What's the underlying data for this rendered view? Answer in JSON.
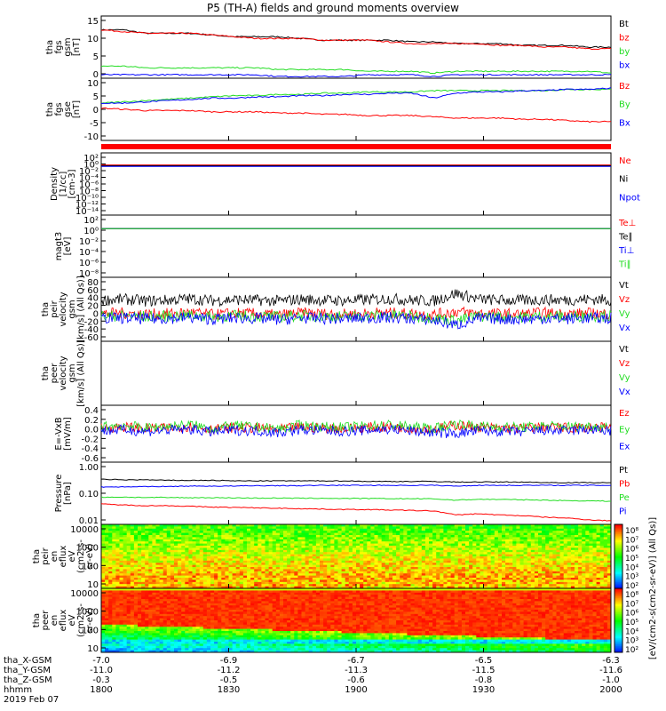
{
  "title": "P5 (TH-A) fields and ground moments overview",
  "colors": {
    "black": "#000000",
    "red": "#ff0000",
    "green": "#22dd22",
    "blue": "#0000ff"
  },
  "colorbar": {
    "top": {
      "ticks": [
        "10⁸",
        "10⁷",
        "10⁶",
        "10⁵",
        "10⁴",
        "10³",
        "10²"
      ]
    },
    "bottom": {
      "ticks": [
        "10⁸",
        "10⁷",
        "10⁶",
        "10⁵",
        "10⁴",
        "10³",
        "10²"
      ]
    },
    "unit_label": "[eV/(cm2-s(cm2-sr-eV)] (All Qs)]"
  },
  "footer": {
    "rows": [
      {
        "label": "tha_X-GSM",
        "values": [
          "-7.0",
          "-6.9",
          "-6.7",
          "-6.5",
          "-6.3"
        ]
      },
      {
        "label": "tha_Y-GSM",
        "values": [
          "-11.0",
          "-11.2",
          "-11.3",
          "-11.5",
          "-11.6"
        ]
      },
      {
        "label": "tha_Z-GSM",
        "values": [
          "-0.3",
          "-0.5",
          "-0.6",
          "-0.8",
          "-1.0"
        ]
      },
      {
        "label": "hhmm",
        "values": [
          "1800",
          "1830",
          "1900",
          "1930",
          "2000"
        ]
      }
    ],
    "date": "2019 Feb 07"
  },
  "chart_data": [
    {
      "type": "line",
      "ylabel": [
        "tha",
        "fgs",
        "gsm",
        "[nT]"
      ],
      "ylim": [
        -3,
        15
      ],
      "yticks": [
        "15",
        "10",
        "5",
        "0"
      ],
      "series": [
        {
          "name": "Bt",
          "color": "black",
          "values": [
            11,
            11,
            10,
            10,
            10,
            9.5,
            9,
            9,
            9,
            8.5,
            8,
            8,
            8,
            8,
            7.5,
            7.5,
            7,
            7,
            7,
            6.5,
            6.5,
            6.5,
            6,
            6
          ]
        },
        {
          "name": "bz",
          "color": "red",
          "values": [
            11,
            10.5,
            10,
            10,
            10,
            9.5,
            9,
            8.5,
            8.5,
            8.5,
            8,
            8,
            8,
            7.5,
            7,
            7,
            7,
            7,
            6.5,
            6.5,
            6,
            6,
            5.5,
            5.5
          ]
        },
        {
          "name": "by",
          "color": "green",
          "values": [
            0.5,
            0.5,
            0,
            0,
            0,
            0,
            0,
            0,
            -0.5,
            -0.5,
            -0.5,
            -0.5,
            -1,
            -1,
            -1,
            -1.5,
            -1,
            -1,
            -1,
            -1,
            -1,
            -1,
            -1,
            -1.5
          ]
        },
        {
          "name": "bx",
          "color": "blue",
          "values": [
            -2,
            -2,
            -2,
            -2,
            -2,
            -2,
            -2,
            -2,
            -2.5,
            -2.5,
            -2.5,
            -2.5,
            -2,
            -2,
            -2,
            -2.5,
            -2,
            -2,
            -2,
            -2,
            -2,
            -2,
            -2,
            -2
          ]
        }
      ]
    },
    {
      "type": "line",
      "ylabel": [
        "tha",
        "fgs",
        "gse",
        "[nT]"
      ],
      "ylim": [
        -15,
        10
      ],
      "yticks": [
        "10",
        "5",
        "0",
        "-5",
        "-10"
      ],
      "series": [
        {
          "name": "Bz",
          "color": "red",
          "values": [
            -2,
            -2.5,
            -3,
            -3,
            -3,
            -3.5,
            -3.5,
            -3.5,
            -4,
            -4,
            -4.5,
            -4.5,
            -5,
            -5,
            -5,
            -5.5,
            -6,
            -6,
            -6,
            -6.5,
            -6.5,
            -7,
            -7.5,
            -7.5
          ]
        },
        {
          "name": "By",
          "color": "green",
          "values": [
            0,
            0.5,
            1,
            1.5,
            2,
            2.5,
            3,
            3,
            3.5,
            3.5,
            4,
            4,
            4.5,
            4.5,
            4.5,
            5,
            5,
            5,
            5,
            5,
            5,
            5.5,
            5.5,
            5.5
          ]
        },
        {
          "name": "Bx",
          "color": "blue",
          "values": [
            0,
            0,
            0.5,
            1,
            1.5,
            2,
            2,
            2.5,
            2.5,
            3,
            3,
            3.5,
            3.5,
            4,
            4,
            2,
            4,
            4.5,
            4.5,
            5,
            5,
            5.5,
            5.5,
            6
          ]
        }
      ]
    },
    {
      "type": "line",
      "ylabel": [
        "Density",
        "[1/cc]",
        "[cm-3]"
      ],
      "ylog": true,
      "ylim": [
        -14,
        3
      ],
      "yticks": [
        "10²",
        "10⁰",
        "10⁻²",
        "10⁻⁴",
        "10⁻⁶",
        "10⁻⁸",
        "10⁻¹⁰",
        "10⁻¹²",
        "10⁻¹⁴"
      ],
      "series": [
        {
          "name": "Ne",
          "color": "red",
          "values": [
            0.5,
            0.5,
            0.5,
            0.5
          ]
        },
        {
          "name": "Ni",
          "color": "black",
          "values": [
            0.3,
            0.3,
            0.3,
            0.3
          ]
        },
        {
          "name": "Npot",
          "color": "blue",
          "values": [
            0.2,
            0.2,
            0.2,
            0.2
          ]
        }
      ]
    },
    {
      "type": "line",
      "ylabel": [
        "magt3",
        "[eV]"
      ],
      "ylog": true,
      "ylim": [
        -9,
        3
      ],
      "yticks": [
        "10²",
        "10⁰",
        "10⁻²",
        "10⁻⁴",
        "10⁻⁶",
        "10⁻⁸"
      ],
      "series": [
        {
          "name": "Te⊥",
          "color": "red",
          "values": [
            2.5,
            2.5,
            2.5,
            2.5
          ]
        },
        {
          "name": "Te∥",
          "color": "black",
          "values": [
            2.5,
            2.5,
            2.5,
            2.5
          ]
        },
        {
          "name": "Ti⊥",
          "color": "blue",
          "values": [
            2.4,
            2.4,
            2.4,
            2.4
          ]
        },
        {
          "name": "Ti∥",
          "color": "green",
          "values": [
            2.4,
            2.4,
            2.4,
            2.4
          ]
        }
      ]
    },
    {
      "type": "line",
      "ylabel": [
        "tha",
        "peir",
        "velocity",
        "gsm",
        "[km/s] (All Qs)]"
      ],
      "ylim": [
        -60,
        80
      ],
      "yticks": [
        "80",
        "60",
        "40",
        "20",
        "0",
        "-20",
        "-40",
        "-60"
      ],
      "noise": true,
      "series": [
        {
          "name": "Vt",
          "color": "black",
          "values": [
            30,
            32,
            28,
            30,
            33,
            29,
            31,
            30,
            28,
            32,
            30,
            29,
            31,
            33,
            30,
            28,
            45,
            32,
            30,
            29,
            31,
            30,
            32,
            30
          ]
        },
        {
          "name": "Vz",
          "color": "red",
          "values": [
            0,
            2,
            -1,
            0,
            3,
            -2,
            1,
            0,
            -3,
            2,
            0,
            -1,
            1,
            2,
            0,
            -2,
            5,
            1,
            0,
            -1,
            2,
            0,
            1,
            0
          ]
        },
        {
          "name": "Vy",
          "color": "green",
          "values": [
            -5,
            -4,
            -6,
            -5,
            -3,
            -6,
            -4,
            -5,
            -7,
            -4,
            -5,
            -6,
            -4,
            -3,
            -5,
            -8,
            -15,
            -5,
            -6,
            -7,
            -5,
            -6,
            -4,
            -5
          ]
        },
        {
          "name": "Vx",
          "color": "blue",
          "values": [
            -10,
            -9,
            -11,
            -10,
            -8,
            -12,
            -9,
            -10,
            -13,
            -9,
            -10,
            -11,
            -9,
            -8,
            -10,
            -14,
            -25,
            -10,
            -11,
            -12,
            -10,
            -11,
            -9,
            -10
          ]
        }
      ]
    },
    {
      "type": "line",
      "ylabel": [
        "tha",
        "peer",
        "velocity",
        "gsm",
        "[km/s] (All Qs)]"
      ],
      "empty": true,
      "series": [
        {
          "name": "Vt",
          "color": "black",
          "values": []
        },
        {
          "name": "Vz",
          "color": "red",
          "values": []
        },
        {
          "name": "Vy",
          "color": "green",
          "values": []
        },
        {
          "name": "Vx",
          "color": "blue",
          "values": []
        }
      ]
    },
    {
      "type": "line",
      "ylabel": [
        "E=-VxB",
        "[mV/m]"
      ],
      "ylim": [
        -0.6,
        0.4
      ],
      "yticks": [
        "0.4",
        "0.2",
        "0.0",
        "-0.2",
        "-0.4",
        "-0.6"
      ],
      "noise": true,
      "series": [
        {
          "name": "Ez",
          "color": "red",
          "values": [
            0,
            0.02,
            -0.01,
            0,
            0.03,
            -0.02,
            0.01,
            0,
            -0.03,
            0.02,
            0,
            -0.01,
            0.01,
            0.02,
            0,
            -0.02,
            0.05,
            0.01,
            0,
            -0.01,
            0.02,
            0,
            0.01,
            0
          ]
        },
        {
          "name": "Ey",
          "color": "green",
          "values": [
            0.02,
            0.05,
            0,
            0.03,
            0.06,
            -0.01,
            0.04,
            0.02,
            -0.02,
            0.05,
            0.02,
            0.01,
            0.04,
            0.06,
            0.02,
            -0.01,
            0.08,
            0.03,
            0.02,
            0.01,
            0.04,
            0.02,
            0.03,
            0.02
          ]
        },
        {
          "name": "Ex",
          "color": "blue",
          "values": [
            -0.05,
            -0.03,
            -0.06,
            -0.04,
            -0.02,
            -0.07,
            -0.04,
            -0.05,
            -0.08,
            -0.03,
            -0.05,
            -0.06,
            -0.04,
            -0.02,
            -0.05,
            -0.08,
            -0.1,
            -0.05,
            -0.06,
            -0.07,
            -0.04,
            -0.05,
            -0.03,
            -0.05
          ]
        }
      ]
    },
    {
      "type": "line",
      "ylabel": [
        "Pressure",
        "[nPa]"
      ],
      "ylog": true,
      "ylim": [
        -2,
        0
      ],
      "yticks": [
        "1.00",
        "0.10",
        "0.01"
      ],
      "series": [
        {
          "name": "Pt",
          "color": "black",
          "values": [
            0.28,
            0.27,
            0.27,
            0.26,
            0.26,
            0.26,
            0.25,
            0.25,
            0.25,
            0.25,
            0.25,
            0.25,
            0.24,
            0.24,
            0.24,
            0.24,
            0.23,
            0.23,
            0.23,
            0.23,
            0.22,
            0.22,
            0.22,
            0.22
          ]
        },
        {
          "name": "Pb",
          "color": "red",
          "values": [
            0.045,
            0.042,
            0.04,
            0.04,
            0.038,
            0.036,
            0.035,
            0.034,
            0.033,
            0.032,
            0.031,
            0.03,
            0.03,
            0.029,
            0.028,
            0.027,
            0.02,
            0.022,
            0.02,
            0.019,
            0.017,
            0.016,
            0.014,
            0.013
          ]
        },
        {
          "name": "Pe",
          "color": "green",
          "values": [
            0.075,
            0.075,
            0.073,
            0.073,
            0.072,
            0.072,
            0.071,
            0.07,
            0.07,
            0.069,
            0.069,
            0.068,
            0.068,
            0.067,
            0.067,
            0.066,
            0.06,
            0.064,
            0.063,
            0.062,
            0.06,
            0.058,
            0.057,
            0.056
          ]
        },
        {
          "name": "Pi",
          "color": "blue",
          "values": [
            0.16,
            0.16,
            0.165,
            0.165,
            0.17,
            0.17,
            0.17,
            0.175,
            0.175,
            0.175,
            0.18,
            0.18,
            0.18,
            0.18,
            0.18,
            0.18,
            0.17,
            0.18,
            0.18,
            0.18,
            0.18,
            0.18,
            0.18,
            0.18
          ]
        }
      ]
    },
    {
      "type": "heatmap",
      "ylabel": [
        "tha",
        "peir",
        "en",
        "eflux",
        "eV",
        "(cm2-s-",
        "sr-eV)"
      ],
      "ylog": true,
      "yticks": [
        "10000",
        "1000",
        "100",
        "10"
      ],
      "ylim": [
        0.7,
        4.4
      ],
      "profile": "ion"
    },
    {
      "type": "heatmap",
      "ylabel": [
        "tha",
        "peer",
        "en",
        "eflux",
        "eV",
        "(cm2-s-",
        "sr-eV)"
      ],
      "ylog": true,
      "yticks": [
        "10000",
        "1000",
        "100",
        "10"
      ],
      "ylim": [
        0.7,
        4.4
      ],
      "profile": "electron"
    }
  ]
}
